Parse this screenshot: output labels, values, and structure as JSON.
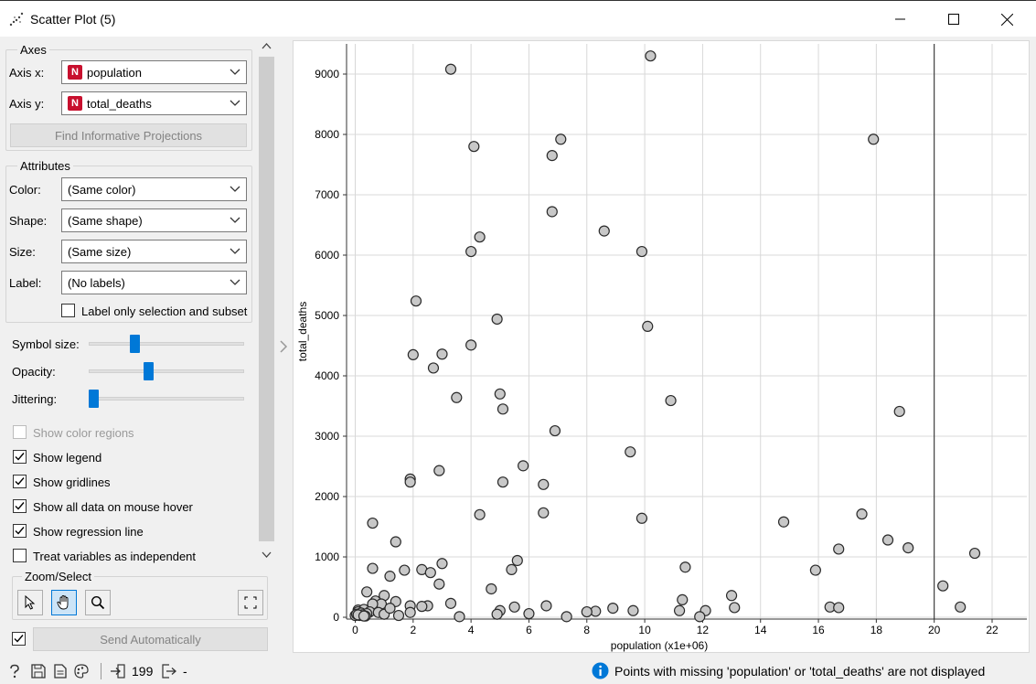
{
  "window": {
    "title": "Scatter Plot (5)",
    "icons": [
      "scatter-plot-icon",
      "minimize-icon",
      "maximize-icon",
      "close-icon"
    ]
  },
  "axes": {
    "group_title": "Axes",
    "x_label": "Axis x:",
    "x_value": "population",
    "x_badge": "N",
    "y_label": "Axis y:",
    "y_value": "total_deaths",
    "y_badge": "N",
    "find_button": "Find Informative Projections"
  },
  "attributes": {
    "group_title": "Attributes",
    "color_label": "Color:",
    "color_value": "(Same color)",
    "shape_label": "Shape:",
    "shape_value": "(Same shape)",
    "size_label": "Size:",
    "size_value": "(Same size)",
    "label_label": "Label:",
    "label_value": "(No labels)",
    "label_only_selection": "Label only selection and subset",
    "label_only_selection_checked": false
  },
  "sliders": {
    "symbol_size_label": "Symbol size:",
    "symbol_size_level": 0.28,
    "opacity_label": "Opacity:",
    "opacity_level": 0.38,
    "jittering_label": "Jittering:",
    "jittering_level": 0.0
  },
  "options": [
    {
      "label": "Show color regions",
      "checked": false,
      "disabled": true
    },
    {
      "label": "Show legend",
      "checked": true,
      "disabled": false
    },
    {
      "label": "Show gridlines",
      "checked": true,
      "disabled": false
    },
    {
      "label": "Show all data on mouse hover",
      "checked": true,
      "disabled": false
    },
    {
      "label": "Show regression line",
      "checked": true,
      "disabled": false
    },
    {
      "label": "Treat variables as independent",
      "checked": false,
      "disabled": false
    }
  ],
  "zoom": {
    "group_title": "Zoom/Select",
    "tools": [
      "select-pointer-icon",
      "pan-hand-icon",
      "zoom-magnifier-icon"
    ],
    "active_tool": "pan-hand-icon",
    "reset_icon": "fit-view-icon"
  },
  "send": {
    "auto_checked": true,
    "button_label": "Send Automatically"
  },
  "status": {
    "icons": [
      "help-icon",
      "save-icon",
      "report-icon",
      "visual-settings-icon",
      "input-icon",
      "output-icon"
    ],
    "input_count": "199",
    "output_count": "-",
    "info_message": "Points with missing 'population' or 'total_deaths' are not displayed"
  },
  "colors": {
    "accent": "#0078d7",
    "point_fill": "#c8c8c8",
    "point_stroke": "#2a2a2a",
    "badge": "#c8102e"
  },
  "chart_data": {
    "type": "scatter",
    "xlabel": "population (x1e+06)",
    "ylabel": "total_deaths",
    "xlim": [
      -0.3,
      23.2
    ],
    "ylim": [
      -30,
      9500
    ],
    "x_ticks": [
      0,
      2,
      4,
      6,
      8,
      10,
      12,
      14,
      16,
      18,
      20,
      22
    ],
    "y_ticks": [
      0,
      1000,
      2000,
      3000,
      4000,
      5000,
      6000,
      7000,
      8000,
      9000
    ],
    "grid": true,
    "regression_line": "vertical at x≈20",
    "x": [
      3.3,
      10.2,
      4.1,
      7.1,
      6.8,
      17.9,
      6.8,
      8.6,
      4.3,
      9.9,
      4.0,
      2.1,
      4.9,
      10.1,
      4.0,
      2.0,
      3.0,
      2.7,
      3.5,
      10.9,
      5.0,
      18.8,
      5.1,
      6.9,
      9.5,
      5.8,
      2.9,
      1.9,
      1.9,
      5.1,
      6.5,
      6.5,
      4.3,
      9.9,
      14.8,
      17.5,
      0.6,
      18.4,
      1.4,
      19.1,
      16.7,
      21.4,
      0.6,
      3.0,
      11.4,
      5.6,
      1.7,
      2.3,
      2.6,
      15.9,
      5.4,
      1.2,
      2.9,
      20.3,
      4.7,
      0.4,
      1.0,
      13.0,
      11.3,
      0.7,
      1.4,
      0.9,
      0.6,
      1.9,
      2.5,
      2.3,
      5.5,
      3.3,
      6.6,
      16.4,
      16.7,
      20.9,
      13.1,
      0.1,
      0.3,
      0.1,
      0.5,
      0.8,
      0.2,
      0.4,
      1.0,
      1.5,
      0.0,
      0.05,
      0.15,
      0.25,
      0.35,
      1.2,
      1.9,
      5.0,
      8.3,
      8.9,
      9.6,
      11.2,
      12.1,
      4.9,
      8.0,
      6.0,
      3.6,
      7.3,
      11.9,
      0.1,
      0.3
    ],
    "y": [
      9080,
      9300,
      7800,
      7920,
      7650,
      7920,
      6720,
      6400,
      6300,
      6060,
      6060,
      5240,
      4940,
      4820,
      4510,
      4350,
      4360,
      4130,
      3640,
      3590,
      3700,
      3410,
      3450,
      3090,
      2740,
      2510,
      2430,
      2290,
      2240,
      2240,
      2200,
      1730,
      1700,
      1640,
      1580,
      1710,
      1560,
      1280,
      1250,
      1150,
      1130,
      1060,
      810,
      890,
      830,
      940,
      780,
      790,
      740,
      780,
      790,
      680,
      550,
      520,
      470,
      420,
      360,
      360,
      290,
      270,
      260,
      220,
      220,
      190,
      190,
      180,
      170,
      230,
      190,
      170,
      160,
      170,
      160,
      120,
      130,
      90,
      90,
      80,
      70,
      60,
      50,
      30,
      30,
      50,
      30,
      40,
      20,
      150,
      80,
      110,
      100,
      150,
      110,
      110,
      110,
      50,
      90,
      60,
      10,
      10,
      10,
      40,
      20
    ]
  }
}
